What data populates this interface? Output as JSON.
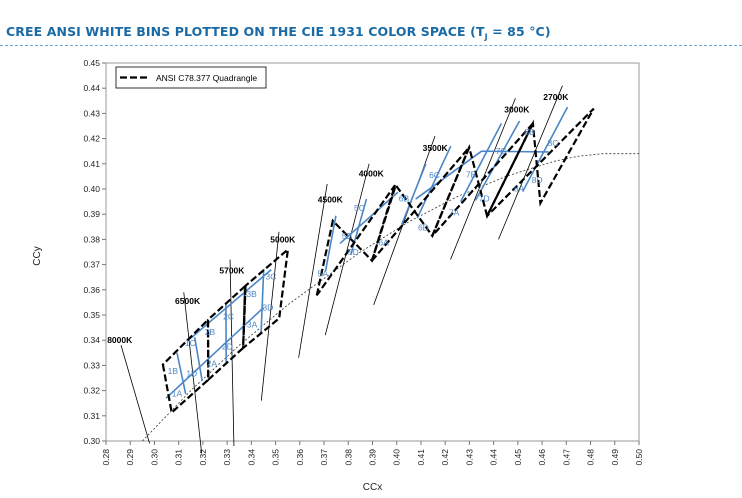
{
  "title_main": "CREE ANSI WHITE BINS PLOTTED ON THE CIE 1931 COLOR SPACE (T",
  "title_sub": "J",
  "title_end": " = 85 °C)",
  "colors": {
    "title": "#1a6aa6",
    "bin_line": "#4a86c6",
    "bin_text": "#4a86c6",
    "quad": "#000000"
  },
  "chart_data": {
    "type": "scatter",
    "xlabel": "CCx",
    "ylabel": "CCy",
    "xlim": [
      0.28,
      0.5
    ],
    "ylim": [
      0.3,
      0.45
    ],
    "xticks": [
      "0.28",
      "0.29",
      "0.30",
      "0.31",
      "0.32",
      "0.33",
      "0.34",
      "0.35",
      "0.36",
      "0.37",
      "0.38",
      "0.39",
      "0.40",
      "0.41",
      "0.42",
      "0.43",
      "0.44",
      "0.45",
      "0.46",
      "0.47",
      "0.48",
      "0.49",
      "0.50"
    ],
    "yticks": [
      "0.30",
      "0.31",
      "0.32",
      "0.33",
      "0.34",
      "0.35",
      "0.36",
      "0.37",
      "0.38",
      "0.39",
      "0.40",
      "0.41",
      "0.42",
      "0.43",
      "0.44",
      "0.45"
    ],
    "legend": {
      "label": "ANSI  C78.377 Quadrangle",
      "placement": "top-left"
    },
    "quadrangles": [
      {
        "name": "8000K",
        "points": [
          [
            0.3035,
            0.3303
          ],
          [
            0.3071,
            0.3113
          ],
          [
            0.3222,
            0.3243
          ],
          [
            0.3221,
            0.3481
          ]
        ]
      },
      {
        "name": "6500K",
        "points": [
          [
            0.3221,
            0.3481
          ],
          [
            0.3222,
            0.3243
          ],
          [
            0.3366,
            0.3369
          ],
          [
            0.3376,
            0.3616
          ]
        ]
      },
      {
        "name": "5700K",
        "points": [
          [
            0.3376,
            0.3616
          ],
          [
            0.3366,
            0.3369
          ],
          [
            0.3515,
            0.3487
          ],
          [
            0.3551,
            0.376
          ]
        ]
      },
      {
        "name": "5000K",
        "points": [
          [
            0.367,
            0.3578
          ],
          [
            0.3736,
            0.3874
          ],
          [
            0.3898,
            0.3716
          ],
          [
            0.3993,
            0.4015
          ]
        ]
      },
      {
        "name": "4500K",
        "points": [
          [
            0.3898,
            0.3716
          ],
          [
            0.3996,
            0.4015
          ],
          [
            0.4147,
            0.3814
          ],
          [
            0.4299,
            0.4165
          ]
        ]
      },
      {
        "name": "3500K",
        "points": [
          [
            0.4147,
            0.3814
          ],
          [
            0.4299,
            0.4165
          ],
          [
            0.4373,
            0.3893
          ],
          [
            0.4562,
            0.426
          ]
        ]
      },
      {
        "name": "3000K",
        "points": [
          [
            0.4373,
            0.3893
          ],
          [
            0.4562,
            0.426
          ],
          [
            0.4593,
            0.3944
          ],
          [
            0.4813,
            0.4319
          ]
        ]
      }
    ],
    "planckian_x": [
      0.295,
      0.305,
      0.315,
      0.325,
      0.335,
      0.345,
      0.355,
      0.365,
      0.375,
      0.385,
      0.395,
      0.405,
      0.415,
      0.425,
      0.435,
      0.445,
      0.455,
      0.465,
      0.475,
      0.485,
      0.495,
      0.5
    ],
    "planckian_y": [
      0.3,
      0.31,
      0.32,
      0.329,
      0.338,
      0.346,
      0.354,
      0.361,
      0.368,
      0.375,
      0.381,
      0.387,
      0.392,
      0.397,
      0.401,
      0.405,
      0.408,
      0.411,
      0.413,
      0.414,
      0.414,
      0.414
    ],
    "cct_labels": [
      "8000K",
      "6500K",
      "5700K",
      "5000K",
      "4500K",
      "4000K",
      "3500K",
      "3000K",
      "2700K"
    ],
    "cct_positions": [
      [
        0.2805,
        0.3388
      ],
      [
        0.3085,
        0.3544
      ],
      [
        0.3268,
        0.3664
      ],
      [
        0.3478,
        0.3788
      ],
      [
        0.3674,
        0.3946
      ],
      [
        0.3843,
        0.4049
      ],
      [
        0.4107,
        0.4151
      ],
      [
        0.4444,
        0.4303
      ],
      [
        0.4605,
        0.4353
      ]
    ],
    "cct_lines": [
      [
        [
          0.2862,
          0.338
        ],
        [
          0.298,
          0.299
        ]
      ],
      [
        [
          0.3121,
          0.359
        ],
        [
          0.3195,
          0.295
        ]
      ],
      [
        [
          0.3312,
          0.372
        ],
        [
          0.3328,
          0.298
        ]
      ],
      [
        [
          0.3514,
          0.383
        ],
        [
          0.3441,
          0.316
        ]
      ],
      [
        [
          0.3713,
          0.402
        ],
        [
          0.3595,
          0.333
        ]
      ],
      [
        [
          0.3886,
          0.41
        ],
        [
          0.3705,
          0.342
        ]
      ],
      [
        [
          0.4158,
          0.421
        ],
        [
          0.3905,
          0.354
        ]
      ],
      [
        [
          0.449,
          0.436
        ],
        [
          0.4222,
          0.372
        ]
      ],
      [
        [
          0.4684,
          0.441
        ],
        [
          0.442,
          0.38
        ]
      ]
    ],
    "bins": [
      "1A",
      "1B",
      "1C",
      "1D",
      "2A",
      "2B",
      "2C",
      "2D",
      "3A",
      "3B",
      "3C",
      "3D",
      "5A",
      "5B",
      "5C",
      "5D",
      "6A",
      "6B",
      "6C",
      "6D",
      "7A",
      "7B",
      "7C",
      "7D",
      "8A",
      "8B",
      "8C",
      "8D"
    ],
    "bin_positions": [
      [
        0.3093,
        0.3188
      ],
      [
        0.3076,
        0.3278
      ],
      [
        0.3148,
        0.3388
      ],
      [
        0.3154,
        0.3267
      ],
      [
        0.3237,
        0.3308
      ],
      [
        0.3229,
        0.3433
      ],
      [
        0.3306,
        0.3495
      ],
      [
        0.3301,
        0.3375
      ],
      [
        0.3403,
        0.3463
      ],
      [
        0.3401,
        0.3584
      ],
      [
        0.3481,
        0.3652
      ],
      [
        0.3468,
        0.353
      ],
      [
        0.3695,
        0.3664
      ],
      [
        0.3795,
        0.3813
      ],
      [
        0.3846,
        0.3924
      ],
      [
        0.3821,
        0.375
      ],
      [
        0.3946,
        0.3788
      ],
      [
        0.403,
        0.3962
      ],
      [
        0.4156,
        0.4056
      ],
      [
        0.411,
        0.3847
      ],
      [
        0.4237,
        0.3907
      ],
      [
        0.4307,
        0.4057
      ],
      [
        0.4431,
        0.4151
      ],
      [
        0.4361,
        0.3963
      ],
      [
        0.4505,
        0.4001
      ],
      [
        0.4548,
        0.4226
      ],
      [
        0.4645,
        0.4182
      ],
      [
        0.458,
        0.4036
      ]
    ],
    "bin_lines": [
      [
        [
          0.3093,
          0.335
        ],
        [
          0.3129,
          0.3186
        ]
      ],
      [
        [
          0.3166,
          0.3412
        ],
        [
          0.3197,
          0.3238
        ]
      ],
      [
        [
          0.3295,
          0.3542
        ],
        [
          0.3296,
          0.3306
        ]
      ],
      [
        [
          0.3371,
          0.3601
        ],
        [
          0.3366,
          0.3369
        ]
      ],
      [
        [
          0.3451,
          0.3683
        ],
        [
          0.344,
          0.3428
        ]
      ],
      [
        [
          0.3749,
          0.3894
        ],
        [
          0.3706,
          0.3674
        ]
      ],
      [
        [
          0.3875,
          0.396
        ],
        [
          0.3811,
          0.374
        ]
      ],
      [
        [
          0.412,
          0.41
        ],
        [
          0.4021,
          0.386
        ]
      ],
      [
        [
          0.4223,
          0.417
        ],
        [
          0.4085,
          0.3885
        ]
      ],
      [
        [
          0.4432,
          0.426
        ],
        [
          0.4264,
          0.395
        ]
      ],
      [
        [
          0.4507,
          0.427
        ],
        [
          0.4325,
          0.3955
        ]
      ],
      [
        [
          0.4705,
          0.4325
        ],
        [
          0.452,
          0.399
        ]
      ],
      [
        [
          0.3048,
          0.317
        ],
        [
          0.3451,
          0.353
        ]
      ],
      [
        [
          0.3146,
          0.3405
        ],
        [
          0.3482,
          0.368
        ]
      ],
      [
        [
          0.3766,
          0.3784
        ],
        [
          0.4005,
          0.3987
        ]
      ],
      [
        [
          0.4078,
          0.396
        ],
        [
          0.435,
          0.415
        ]
      ],
      [
        [
          0.435,
          0.415
        ],
        [
          0.4627,
          0.4147
        ]
      ]
    ]
  }
}
